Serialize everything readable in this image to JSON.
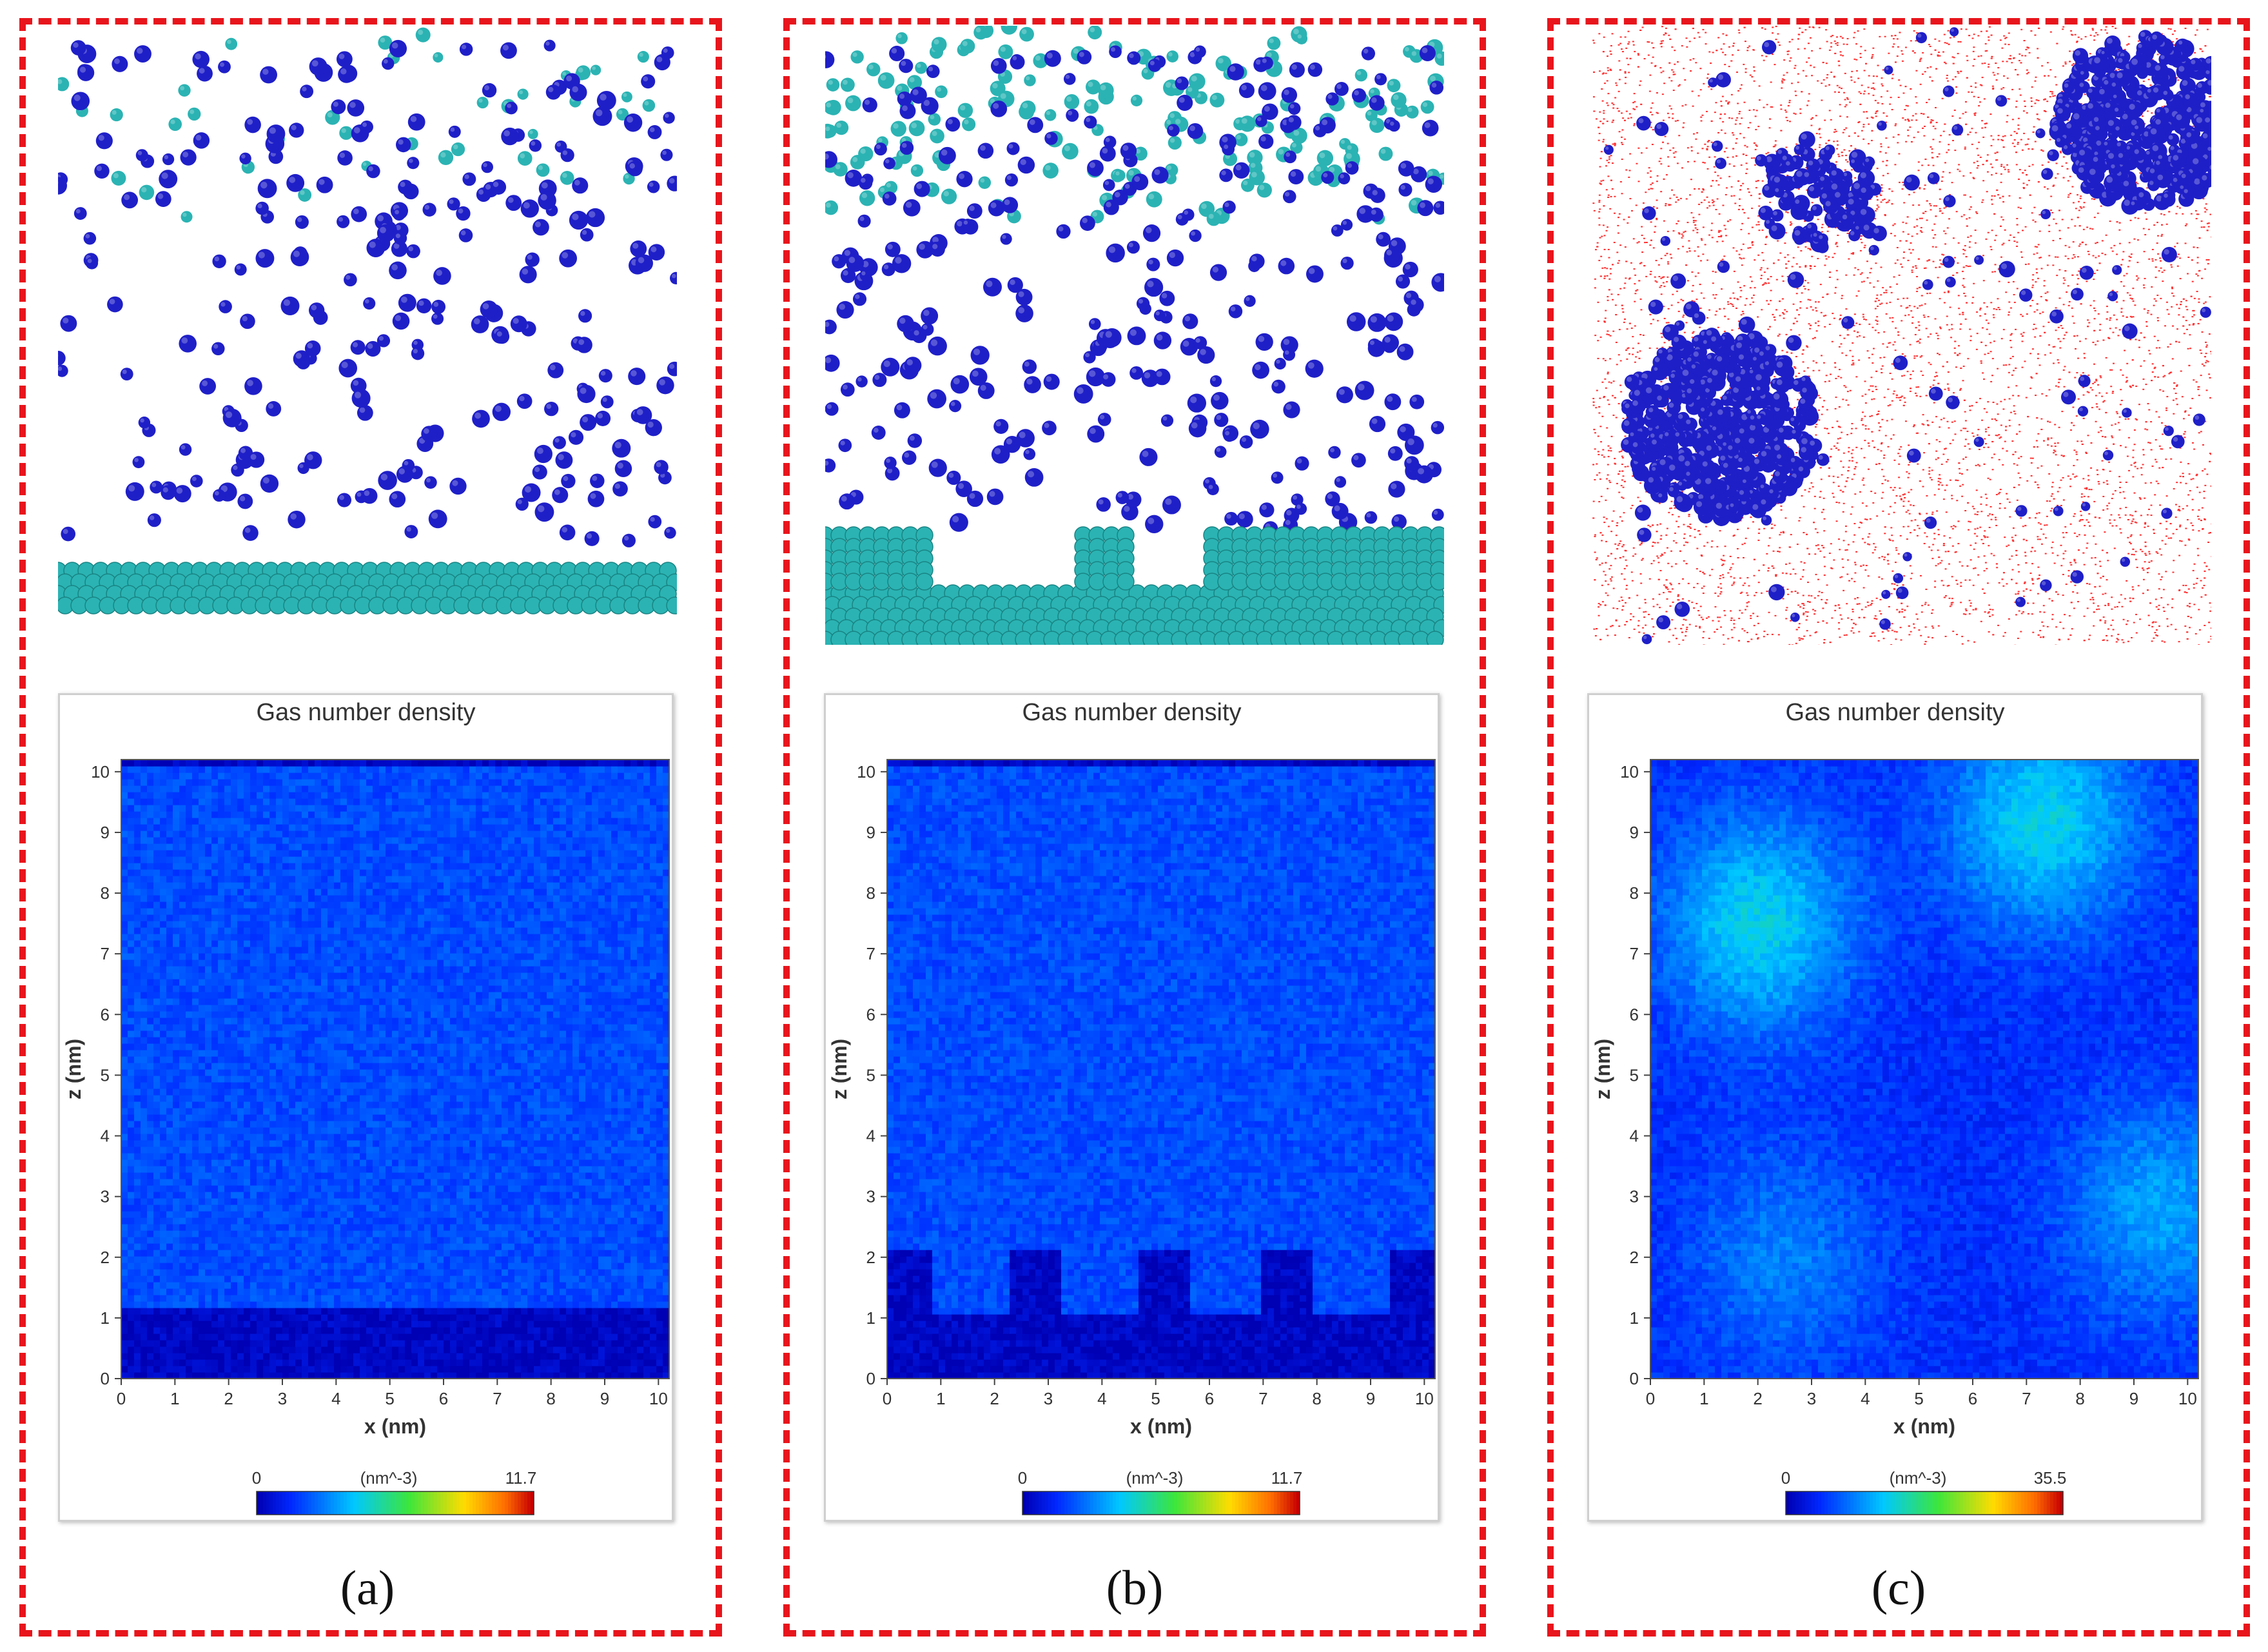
{
  "figure": {
    "panels": [
      {
        "label": "(a)",
        "plot": {
          "title": "Gas number density",
          "xlabel": "x (nm)",
          "ylabel": "z (nm)",
          "x_ticks": [
            "0",
            "1",
            "2",
            "3",
            "4",
            "5",
            "6",
            "7",
            "8",
            "9",
            "10"
          ],
          "z_ticks": [
            "0",
            "1",
            "2",
            "3",
            "4",
            "5",
            "6",
            "7",
            "8",
            "9",
            "10"
          ],
          "colorbar": {
            "min_label": "0",
            "unit_label": "(nm^-3)",
            "max_label": "11.7"
          }
        }
      },
      {
        "label": "(b)",
        "plot": {
          "title": "Gas number density",
          "xlabel": "x (nm)",
          "ylabel": "z (nm)",
          "x_ticks": [
            "0",
            "1",
            "2",
            "3",
            "4",
            "5",
            "6",
            "7",
            "8",
            "9",
            "10"
          ],
          "z_ticks": [
            "0",
            "1",
            "2",
            "3",
            "4",
            "5",
            "6",
            "7",
            "8",
            "9",
            "10"
          ],
          "colorbar": {
            "min_label": "0",
            "unit_label": "(nm^-3)",
            "max_label": "11.7"
          }
        }
      },
      {
        "label": "(c)",
        "plot": {
          "title": "Gas number density",
          "xlabel": "x (nm)",
          "ylabel": "z (nm)",
          "x_ticks": [
            "0",
            "1",
            "2",
            "3",
            "4",
            "5",
            "6",
            "7",
            "8",
            "9",
            "10"
          ],
          "z_ticks": [
            "0",
            "1",
            "2",
            "3",
            "4",
            "5",
            "6",
            "7",
            "8",
            "9",
            "10"
          ],
          "colorbar": {
            "min_label": "0",
            "unit_label": "(nm^-3)",
            "max_label": "35.5"
          }
        }
      }
    ]
  },
  "colors": {
    "frame": "#e8151c",
    "substrate": "#2bb3b3",
    "gas_molecule": "#1f1fc8",
    "water": "#ff3030",
    "density_base": "#0a3cf0"
  },
  "chart_data": [
    {
      "type": "heatmap",
      "title": "Gas number density",
      "xlabel": "x (nm)",
      "ylabel": "z (nm)",
      "xlim": [
        0,
        10.2
      ],
      "ylim": [
        0,
        10.2
      ],
      "colorbar_range": [
        0,
        11.7
      ],
      "colorbar_unit": "nm^-3",
      "description_regions": [
        {
          "region": "flat substrate",
          "z_range": [
            0,
            1.2
          ],
          "density": 0
        },
        {
          "region": "gas",
          "z_range": [
            1.2,
            10.2
          ],
          "density_mean": 1.5
        }
      ]
    },
    {
      "type": "heatmap",
      "title": "Gas number density",
      "xlabel": "x (nm)",
      "ylabel": "z (nm)",
      "xlim": [
        0,
        10.2
      ],
      "ylim": [
        0,
        10.2
      ],
      "colorbar_range": [
        0,
        11.7
      ],
      "colorbar_unit": "nm^-3",
      "description_regions": [
        {
          "region": "grooved substrate",
          "z_range": [
            0,
            1.1
          ],
          "density": 0
        },
        {
          "region": "pillars",
          "x_ranges": [
            [
              0,
              0.8
            ],
            [
              2.3,
              3.2
            ],
            [
              4.7,
              5.6
            ],
            [
              7.0,
              7.9
            ],
            [
              9.4,
              10.2
            ]
          ],
          "z_range": [
            1.1,
            2.1
          ],
          "density": 0
        },
        {
          "region": "gas",
          "z_range": [
            1.1,
            10.2
          ],
          "density_mean": 1.5
        }
      ]
    },
    {
      "type": "heatmap",
      "title": "Gas number density",
      "xlabel": "x (nm)",
      "ylabel": "z (nm)",
      "xlim": [
        0,
        10.2
      ],
      "ylim": [
        0,
        10.2
      ],
      "colorbar_range": [
        0,
        35.5
      ],
      "colorbar_unit": "nm^-3",
      "hotspots": [
        {
          "x": 2.0,
          "z": 7.5,
          "density": 10
        },
        {
          "x": 7.3,
          "z": 9.2,
          "density": 10
        },
        {
          "x": 9.5,
          "z": 2.8,
          "density": 7
        },
        {
          "x": 2.5,
          "z": 2.0,
          "density": 5
        }
      ]
    }
  ]
}
